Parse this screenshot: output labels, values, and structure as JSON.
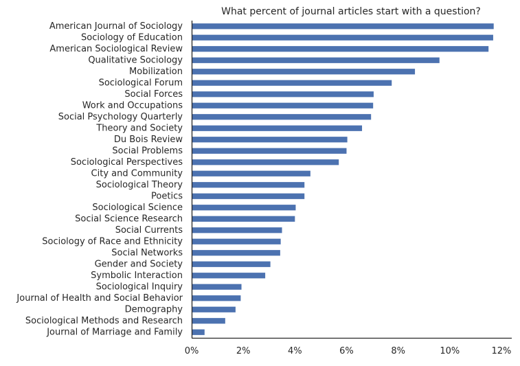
{
  "chart_data": {
    "type": "bar",
    "orientation": "horizontal",
    "title": "What percent of journal articles start with a question?",
    "xlabel": "",
    "ylabel": "",
    "xlim": [
      0,
      12.4
    ],
    "xticks": [
      0,
      2,
      4,
      6,
      8,
      10,
      12
    ],
    "xtick_labels": [
      "0%",
      "2%",
      "4%",
      "6%",
      "8%",
      "10%",
      "12%"
    ],
    "grid": false,
    "bar_color": "#4c72b0",
    "categories": [
      "American Journal of Sociology",
      "Sociology of Education",
      "American Sociological Review",
      "Qualitative Sociology",
      "Mobilization",
      "Sociological Forum",
      "Social Forces",
      "Work and Occupations",
      "Social Psychology Quarterly",
      "Theory and Society",
      "Du Bois Review",
      "Social Problems",
      "Sociological Perspectives",
      "City and Community",
      "Sociological Theory",
      "Poetics",
      "Sociological Science",
      "Social Science Research",
      "Social Currents",
      "Sociology of Race and Ethnicity",
      "Social Networks",
      "Gender and Society",
      "Symbolic Interaction",
      "Sociological Inquiry",
      "Journal of Health and Social Behavior",
      "Demography",
      "Sociological Methods and Research",
      "Journal of Marriage and Family"
    ],
    "values": [
      11.7,
      11.68,
      11.5,
      9.6,
      8.65,
      7.75,
      7.05,
      7.03,
      6.95,
      6.6,
      6.03,
      6.0,
      5.7,
      4.6,
      4.37,
      4.37,
      4.03,
      4.0,
      3.5,
      3.45,
      3.43,
      3.05,
      2.85,
      1.93,
      1.9,
      1.7,
      1.3,
      0.5
    ]
  }
}
